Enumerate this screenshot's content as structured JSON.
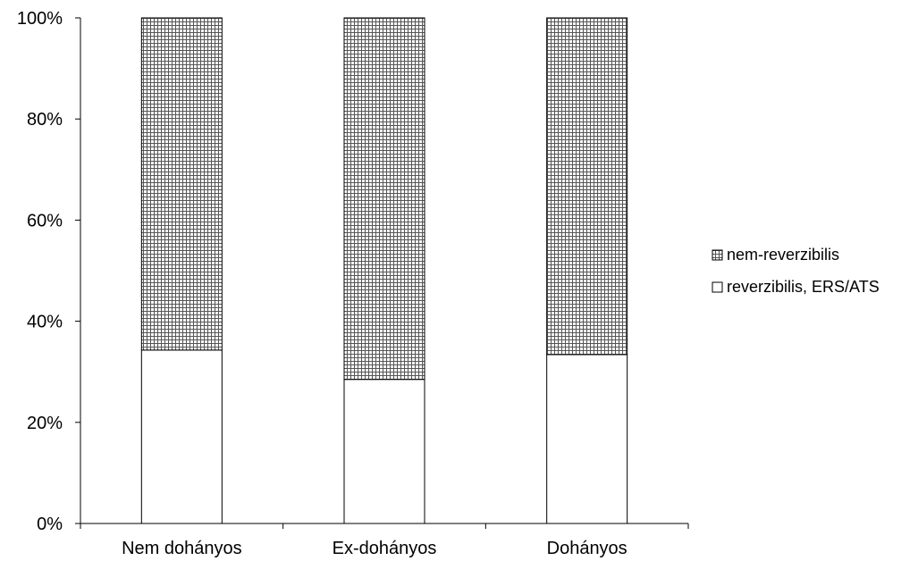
{
  "chart_data": {
    "type": "bar",
    "stacked": true,
    "percent": true,
    "categories": [
      "Nem dohányos",
      "Ex-dohányos",
      "Dohányos"
    ],
    "series": [
      {
        "name": "reverzibilis, ERS/ATS",
        "values": [
          34.3,
          28.5,
          33.4
        ],
        "fill": "solid",
        "color": "#ffffff"
      },
      {
        "name": "nem-reverzibilis",
        "values": [
          65.7,
          71.5,
          66.6
        ],
        "fill": "grid-hatch",
        "color": "#5a5a5a"
      }
    ],
    "legend_order": [
      "nem-reverzibilis",
      "reverzibilis, ERS/ATS"
    ],
    "ylim": [
      0,
      100
    ],
    "yticks": [
      "0%",
      "20%",
      "40%",
      "60%",
      "80%",
      "100%"
    ],
    "legend_position": "right",
    "grid": false
  }
}
